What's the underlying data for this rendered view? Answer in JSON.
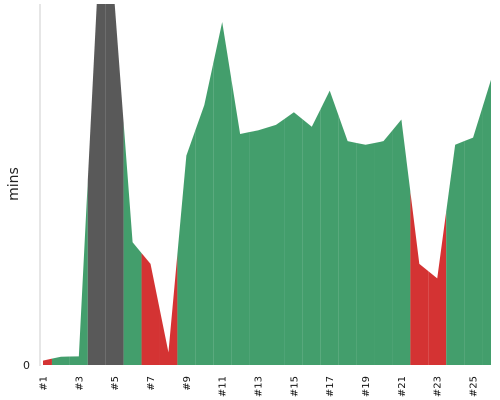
{
  "chart_data": {
    "type": "area",
    "ylabel": "mins",
    "xlabel": "",
    "title": "",
    "y_tick_labels": [
      "0"
    ],
    "ylim": [
      0,
      100
    ],
    "x_tick_labels": [
      "#1",
      "#3",
      "#5",
      "#7",
      "#9",
      "#11",
      "#13",
      "#15",
      "#17",
      "#19",
      "#21",
      "#23",
      "#25"
    ],
    "x_range": [
      1,
      26
    ],
    "builds": [
      1,
      2,
      3,
      4,
      5,
      6,
      7,
      8,
      9,
      10,
      11,
      12,
      13,
      14,
      15,
      16,
      17,
      18,
      19,
      20,
      21,
      22,
      23,
      24,
      25,
      26
    ],
    "durations": [
      1.2,
      2.3,
      2.4,
      130,
      130,
      34,
      28,
      3.5,
      58,
      72,
      95,
      64,
      65,
      66.5,
      70,
      66,
      76,
      62,
      61,
      62,
      68,
      28,
      24,
      61,
      63,
      79
    ],
    "status": [
      "failed",
      "success",
      "success",
      "aborted",
      "aborted",
      "success",
      "failed",
      "failed",
      "success",
      "success",
      "success",
      "success",
      "success",
      "success",
      "success",
      "success",
      "success",
      "success",
      "success",
      "success",
      "success",
      "failed",
      "failed",
      "success",
      "success",
      "success"
    ],
    "status_colors": {
      "success": "#439e6c",
      "failed": "#d43333",
      "aborted": "#595959"
    },
    "grid": false,
    "legend": "none"
  }
}
